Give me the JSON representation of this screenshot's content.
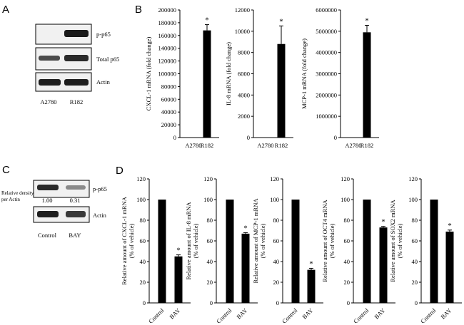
{
  "panels": {
    "A": {
      "label": "A",
      "rows": [
        "p-p65",
        "Total p65",
        "Actin"
      ],
      "lanes": [
        "A2780",
        "R182"
      ]
    },
    "B": {
      "label": "B"
    },
    "C": {
      "label": "C",
      "rows": [
        "p-p65",
        "Actin"
      ],
      "density_label_line1": "Relative density",
      "density_label_line2": "per Actin",
      "density_values": [
        "1.00",
        "0.31"
      ],
      "lanes": [
        "Control",
        "BAY"
      ]
    },
    "D": {
      "label": "D"
    }
  },
  "colors": {
    "bar": "#000000",
    "axis": "#000000",
    "blot_bg": "#f1f1f1"
  },
  "chart_data": [
    {
      "panel": "B",
      "type": "bar",
      "title": "",
      "categories": [
        "A2780",
        "R182"
      ],
      "values": [
        0,
        168000
      ],
      "errors": [
        0,
        9000
      ],
      "ylabel": "CXCL-1 mRNA (fold change)",
      "ylim": [
        0,
        200000
      ],
      "ticks": [
        "0",
        "20000",
        "40000",
        "60000",
        "80000",
        "100000",
        "120000",
        "140000",
        "160000",
        "180000",
        "200000"
      ],
      "significance": [
        "",
        "*"
      ]
    },
    {
      "panel": "B",
      "type": "bar",
      "title": "",
      "categories": [
        "A2780",
        "R182"
      ],
      "values": [
        0,
        8800
      ],
      "errors": [
        0,
        1700
      ],
      "ylabel": "IL-8 mRNA (fold change)",
      "ylim": [
        0,
        12000
      ],
      "ticks": [
        "0",
        "2000",
        "4000",
        "6000",
        "8000",
        "10000",
        "12000"
      ],
      "significance": [
        "",
        "*"
      ]
    },
    {
      "panel": "B",
      "type": "bar",
      "title": "",
      "categories": [
        "A2780",
        "R182"
      ],
      "values": [
        0,
        4950000
      ],
      "errors": [
        0,
        330000
      ],
      "ylabel": "MCP-1 mRNA (fold change)",
      "ylim": [
        0,
        6000000
      ],
      "ticks": [
        "0",
        "1000000",
        "2000000",
        "3000000",
        "4000000",
        "5000000",
        "6000000"
      ],
      "significance": [
        "",
        "*"
      ]
    },
    {
      "panel": "D",
      "type": "bar",
      "title": "",
      "categories": [
        "Control",
        "BAY"
      ],
      "values": [
        100,
        45
      ],
      "errors": [
        0,
        1.5
      ],
      "ylabel": [
        "Relative amount of CXCL-1 mRNA",
        "(% of vehicle)"
      ],
      "ylim": [
        0,
        120
      ],
      "ticks": [
        "0",
        "20",
        "40",
        "60",
        "80",
        "100",
        "120"
      ],
      "significance": [
        "",
        "*"
      ]
    },
    {
      "panel": "D",
      "type": "bar",
      "title": "",
      "categories": [
        "Control",
        "BAY"
      ],
      "values": [
        100,
        67
      ],
      "errors": [
        0,
        1
      ],
      "ylabel": [
        "Relative amount of IL-8 mRNA",
        "(% of vehicle)"
      ],
      "ylim": [
        0,
        120
      ],
      "ticks": [
        "0",
        "20",
        "40",
        "60",
        "80",
        "100",
        "120"
      ],
      "significance": [
        "",
        "*"
      ]
    },
    {
      "panel": "D",
      "type": "bar",
      "title": "",
      "categories": [
        "Control",
        "BAY"
      ],
      "values": [
        100,
        32
      ],
      "errors": [
        0,
        1.5
      ],
      "ylabel": [
        "Relative amount of MCP-1 mRNA",
        "(% of vehicle)"
      ],
      "ylim": [
        0,
        120
      ],
      "ticks": [
        "0",
        "20",
        "40",
        "60",
        "80",
        "100",
        "120"
      ],
      "significance": [
        "",
        "*"
      ]
    },
    {
      "panel": "D",
      "type": "bar",
      "title": "",
      "categories": [
        "Control",
        "BAY"
      ],
      "values": [
        100,
        73
      ],
      "errors": [
        0,
        1
      ],
      "ylabel": [
        "Relative amount of OCT4 mRNA",
        "(% of vehicle)"
      ],
      "ylim": [
        0,
        120
      ],
      "ticks": [
        "0",
        "20",
        "40",
        "60",
        "80",
        "100",
        "120"
      ],
      "significance": [
        "",
        "*"
      ]
    },
    {
      "panel": "D",
      "type": "bar",
      "title": "",
      "categories": [
        "Control",
        "BAY"
      ],
      "values": [
        100,
        69
      ],
      "errors": [
        0,
        1.5
      ],
      "ylabel": [
        "Relative amount of SOX2 mRNA",
        "(% of vehicle)"
      ],
      "ylim": [
        0,
        120
      ],
      "ticks": [
        "0",
        "20",
        "40",
        "60",
        "80",
        "100",
        "120"
      ],
      "significance": [
        "",
        "*"
      ]
    }
  ]
}
